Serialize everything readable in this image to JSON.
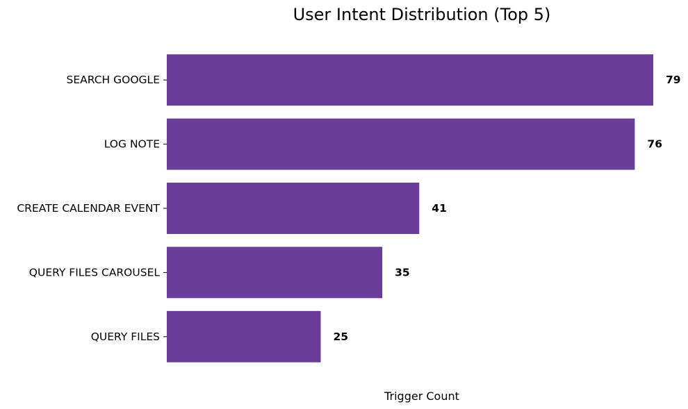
{
  "chart_data": {
    "type": "bar",
    "orientation": "horizontal",
    "title": "User Intent Distribution (Top 5)",
    "xlabel": "Trigger Count",
    "ylabel": "",
    "categories": [
      "SEARCH GOOGLE",
      "LOG NOTE",
      "CREATE CALENDAR EVENT",
      "QUERY FILES CAROUSEL",
      "QUERY FILES"
    ],
    "values": [
      79,
      76,
      41,
      35,
      25
    ],
    "xlim": [
      0,
      79
    ],
    "bar_color": "#6a3d9a",
    "grid": false,
    "legend": "none",
    "data_labels": true
  }
}
